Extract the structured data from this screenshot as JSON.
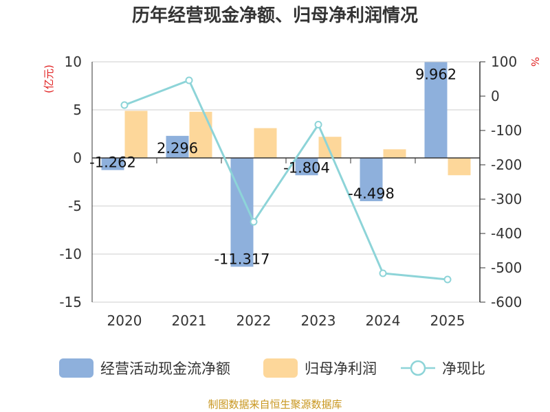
{
  "chart_data": {
    "type": "bar",
    "title": "历年经营现金净额、归母净利润情况",
    "categories": [
      "2020",
      "2021",
      "2022",
      "2023",
      "2024",
      "2025"
    ],
    "series": [
      {
        "name": "经营活动现金流净额",
        "type": "bar",
        "axis": "left",
        "color": "#8eb0dc",
        "values": [
          -1.262,
          2.296,
          -11.317,
          -1.804,
          -4.498,
          9.962
        ],
        "labels": [
          "-1.262",
          "2.296",
          "-11.317",
          "-1.804",
          "-4.498",
          "9.962"
        ]
      },
      {
        "name": "归母净利润",
        "type": "bar",
        "axis": "left",
        "color": "#fdd79a",
        "values": [
          4.9,
          4.8,
          3.1,
          2.2,
          0.9,
          -1.8
        ]
      },
      {
        "name": "净现比",
        "type": "line",
        "axis": "right",
        "color": "#8dd4d8",
        "values": [
          -26,
          46,
          -366,
          -83,
          -516,
          -534
        ]
      }
    ],
    "y_left": {
      "unit": "(亿元)",
      "min": -15,
      "max": 10,
      "ticks": [
        10,
        5,
        0,
        -5,
        -10,
        -15
      ]
    },
    "y_right": {
      "unit": "%",
      "min": -600,
      "max": 100,
      "ticks": [
        100,
        0,
        -100,
        -200,
        -300,
        -400,
        -500,
        -600
      ]
    },
    "source": "制图数据来自恒生聚源数据库"
  }
}
